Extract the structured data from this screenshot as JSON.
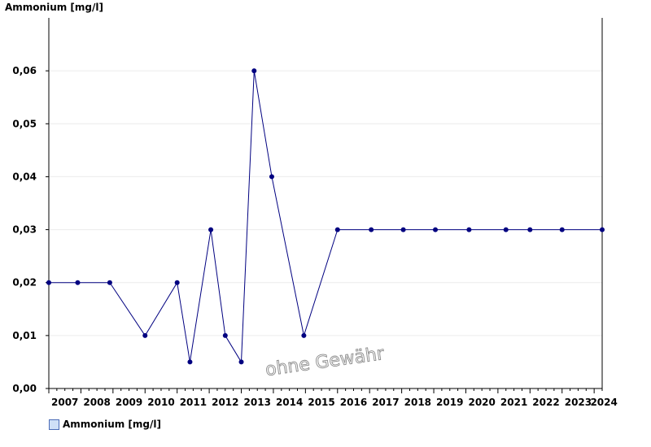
{
  "chart_data": {
    "type": "line",
    "title": "",
    "ylabel": "Ammonium [mg/l]",
    "xlabel": "",
    "ylim": [
      0,
      0.07
    ],
    "yticks": [
      "0,00",
      "0,01",
      "0,02",
      "0,03",
      "0,04",
      "0,05",
      "0,06"
    ],
    "ytick_values": [
      0,
      0.01,
      0.02,
      0.03,
      0.04,
      0.05,
      0.06
    ],
    "xlim": [
      2007,
      2024.25
    ],
    "xticks": [
      "2007",
      "2008",
      "2009",
      "2010",
      "2011",
      "2012",
      "2013",
      "2014",
      "2015",
      "2016",
      "2017",
      "2018",
      "2019",
      "2020",
      "2021",
      "2022",
      "2023",
      "2024"
    ],
    "grid": true,
    "legend_position": "bottom-left",
    "watermark": "ohne Gewähr",
    "series": [
      {
        "name": "Ammonium [mg/l]",
        "color": "#000080",
        "x": [
          2007.0,
          2007.9,
          2008.9,
          2010.0,
          2011.0,
          2011.4,
          2012.05,
          2012.5,
          2013.0,
          2013.4,
          2013.95,
          2014.95,
          2016.0,
          2017.05,
          2018.05,
          2019.05,
          2020.1,
          2021.25,
          2022.0,
          2023.0,
          2024.25
        ],
        "values": [
          0.02,
          0.02,
          0.02,
          0.01,
          0.02,
          0.005,
          0.03,
          0.01,
          0.005,
          0.06,
          0.04,
          0.01,
          0.03,
          0.03,
          0.03,
          0.03,
          0.03,
          0.03,
          0.03,
          0.03,
          0.03
        ]
      }
    ]
  }
}
